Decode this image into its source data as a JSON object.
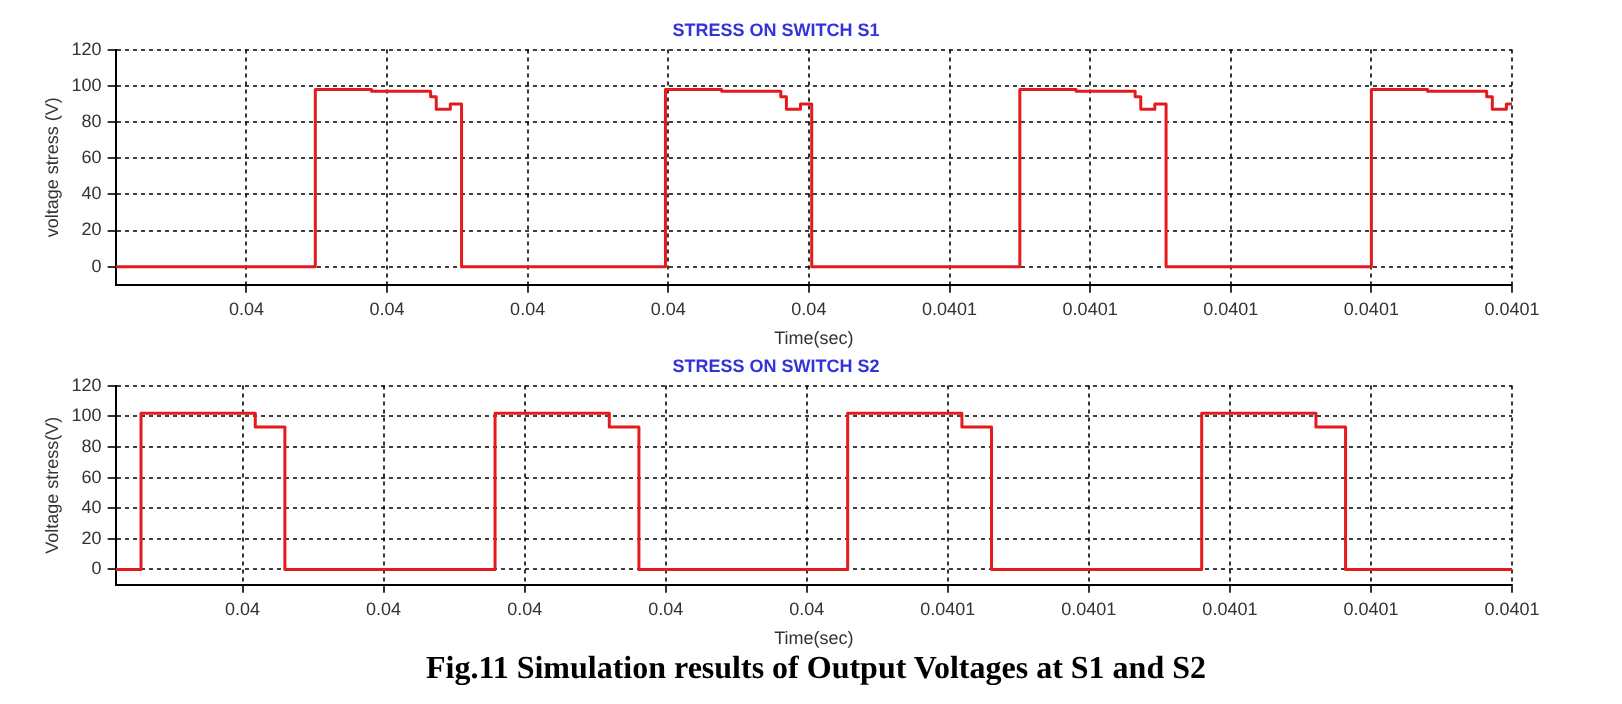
{
  "chart_data": [
    {
      "type": "step",
      "title": "STRESS ON SWITCH S1",
      "xlabel": "Time(sec)",
      "ylabel": "voltage stress (V)",
      "xlim": [
        0.0399907,
        0.04009
      ],
      "xticks": [
        0.04,
        {
          "value": 0.04001,
          "label": "0.04"
        },
        {
          "value": 0.04002,
          "label": "0.04"
        },
        {
          "value": 0.04003,
          "label": "0.04"
        },
        {
          "value": 0.04004,
          "label": "0.04"
        },
        {
          "value": 0.04005,
          "label": "0.0401"
        },
        {
          "value": 0.04006,
          "label": "0.0401"
        },
        {
          "value": 0.04007,
          "label": "0.0401"
        },
        {
          "value": 0.04008,
          "label": "0.0401"
        },
        {
          "value": 0.04009,
          "label": "0.0401"
        }
      ],
      "ylim": [
        -10,
        120
      ],
      "yticks": [
        0,
        20,
        40,
        60,
        80,
        100,
        120
      ],
      "grid": true,
      "line_style": "solid",
      "series": [
        {
          "color": "#e41a1c",
          "x": [
            0.0399907,
            0.0400049,
            0.0400089,
            0.0400131,
            0.0400135,
            0.0400145,
            0.0400153,
            0.0400298,
            0.0400338,
            0.040038,
            0.0400384,
            0.0400394,
            0.0400402,
            0.040055,
            0.040059,
            0.0400632,
            0.0400636,
            0.0400646,
            0.0400654,
            0.04008,
            0.040084,
            0.0400882,
            0.0400886,
            0.0400896,
            0.04009
          ],
          "values": [
            0,
            98,
            97,
            94,
            87,
            90,
            0,
            98,
            97,
            94,
            87,
            90,
            0,
            98,
            97,
            94,
            87,
            90,
            0,
            98,
            97,
            94,
            87,
            90,
            90
          ]
        }
      ]
    },
    {
      "type": "step",
      "title": "STRESS ON SWITCH S2",
      "xlabel": "Time(sec)",
      "ylabel": "Voltage stress(V)",
      "xlim": [
        0.039991,
        0.04009
      ],
      "xticks": [
        0.04,
        {
          "value": 0.04001,
          "label": "0.04"
        },
        {
          "value": 0.04002,
          "label": "0.04"
        },
        {
          "value": 0.04003,
          "label": "0.04"
        },
        {
          "value": 0.04004,
          "label": "0.04"
        },
        {
          "value": 0.04005,
          "label": "0.0401"
        },
        {
          "value": 0.04006,
          "label": "0.0401"
        },
        {
          "value": 0.04007,
          "label": "0.0401"
        },
        {
          "value": 0.04008,
          "label": "0.0401"
        },
        {
          "value": 0.04009,
          "label": "0.0401"
        }
      ],
      "ylim": [
        -10,
        120
      ],
      "yticks": [
        0,
        20,
        40,
        60,
        80,
        100,
        120
      ],
      "grid": true,
      "line_style": "solid",
      "annotations": [
        "Fig.11 Simulation results of Output Voltages at S1 and S2"
      ],
      "series": [
        {
          "color": "#e41a1c",
          "x": [
            0.039991,
            0.0399928,
            0.0400009,
            0.040003,
            0.0400179,
            0.040026,
            0.0400281,
            0.0400429,
            0.040051,
            0.0400531,
            0.040068,
            0.0400761,
            0.0400782,
            0.04009
          ],
          "values": [
            0,
            102,
            93,
            0,
            102,
            93,
            0,
            102,
            93,
            0,
            102,
            93,
            0,
            0
          ]
        }
      ]
    }
  ]
}
